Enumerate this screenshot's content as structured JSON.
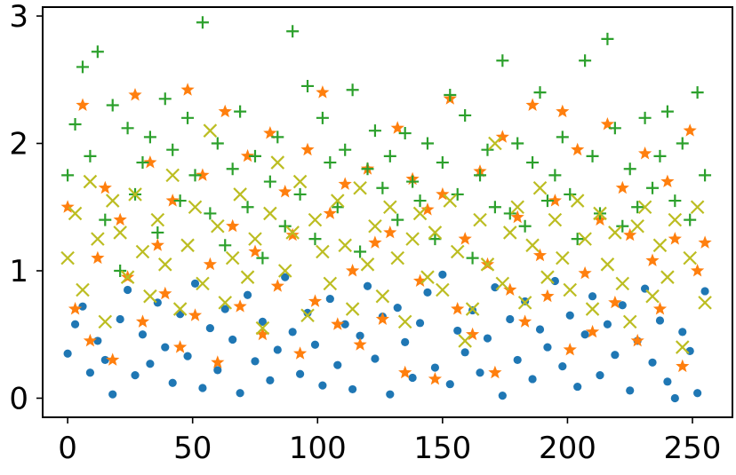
{
  "chart_data": {
    "type": "scatter",
    "title": "",
    "xlabel": "",
    "ylabel": "",
    "xlim": [
      -10,
      266
    ],
    "ylim": [
      -0.15,
      3.07
    ],
    "x_ticks": [
      0,
      50,
      100,
      150,
      200,
      250
    ],
    "y_ticks": [
      0,
      1,
      2,
      3
    ],
    "x_tick_labels": [
      "0",
      "50",
      "100",
      "150",
      "200",
      "250"
    ],
    "y_tick_labels": [
      "0",
      "1",
      "2",
      "3"
    ],
    "grid": false,
    "legend": "none",
    "series": [
      {
        "marker": "dot",
        "color": "#1f77b4",
        "x": [
          0,
          3,
          6,
          9,
          12,
          15,
          18,
          21,
          24,
          27,
          30,
          33,
          36,
          39,
          42,
          45,
          48,
          51,
          54,
          57,
          60,
          63,
          66,
          69,
          72,
          75,
          78,
          81,
          84,
          87,
          90,
          93,
          96,
          99,
          102,
          105,
          108,
          111,
          114,
          117,
          120,
          123,
          126,
          129,
          132,
          135,
          138,
          141,
          144,
          147,
          150,
          153,
          156,
          159,
          162,
          165,
          168,
          171,
          174,
          177,
          180,
          183,
          186,
          189,
          192,
          195,
          198,
          201,
          204,
          207,
          210,
          213,
          216,
          219,
          222,
          225,
          228,
          231,
          234,
          237,
          240,
          243,
          246,
          249,
          252,
          255
        ],
        "y": [
          0.35,
          0.58,
          0.72,
          0.2,
          0.45,
          0.3,
          0.03,
          0.62,
          0.85,
          0.18,
          0.5,
          0.27,
          0.75,
          0.4,
          0.12,
          0.66,
          0.33,
          0.9,
          0.08,
          0.55,
          0.22,
          0.7,
          0.46,
          0.04,
          0.81,
          0.29,
          0.6,
          0.14,
          0.38,
          0.95,
          0.52,
          0.19,
          0.67,
          0.42,
          0.1,
          0.78,
          0.26,
          0.58,
          0.07,
          0.49,
          0.88,
          0.31,
          0.64,
          0.03,
          0.71,
          0.44,
          0.16,
          0.59,
          0.83,
          0.24,
          0.97,
          0.11,
          0.53,
          0.36,
          0.69,
          0.2,
          0.47,
          0.87,
          0.02,
          0.62,
          0.3,
          0.76,
          0.15,
          0.54,
          0.4,
          0.92,
          0.25,
          0.65,
          0.09,
          0.5,
          0.8,
          0.18,
          0.58,
          0.34,
          0.73,
          0.06,
          0.45,
          0.86,
          0.28,
          0.61,
          0.13,
          0.0,
          0.52,
          0.37,
          0.04,
          0.84
        ]
      },
      {
        "marker": "star",
        "color": "#ff7f0e",
        "x": [
          0,
          3,
          6,
          9,
          12,
          15,
          18,
          21,
          24,
          27,
          30,
          33,
          36,
          39,
          42,
          45,
          48,
          51,
          54,
          57,
          60,
          63,
          66,
          69,
          72,
          75,
          78,
          81,
          84,
          87,
          90,
          93,
          96,
          99,
          102,
          105,
          108,
          111,
          114,
          117,
          120,
          123,
          126,
          129,
          132,
          135,
          138,
          141,
          144,
          147,
          150,
          153,
          156,
          159,
          162,
          165,
          168,
          171,
          174,
          177,
          180,
          183,
          186,
          189,
          192,
          195,
          198,
          201,
          204,
          207,
          210,
          213,
          216,
          219,
          222,
          225,
          228,
          231,
          234,
          237,
          240,
          243,
          246,
          249,
          252,
          255
        ],
        "y": [
          1.5,
          0.7,
          2.3,
          0.45,
          1.1,
          1.65,
          0.3,
          1.4,
          0.95,
          2.38,
          0.6,
          1.85,
          1.2,
          0.82,
          1.55,
          0.4,
          2.42,
          0.65,
          1.75,
          1.05,
          0.28,
          2.25,
          1.35,
          0.72,
          1.9,
          1.15,
          0.5,
          2.08,
          0.88,
          1.62,
          1.28,
          0.35,
          1.95,
          0.76,
          2.4,
          1.45,
          0.58,
          1.68,
          1.0,
          0.42,
          1.8,
          1.22,
          0.62,
          1.3,
          2.12,
          0.2,
          1.72,
          0.92,
          1.48,
          0.15,
          1.6,
          2.35,
          0.7,
          1.25,
          0.5,
          1.78,
          1.05,
          0.2,
          2.05,
          0.85,
          1.42,
          0.6,
          2.3,
          1.12,
          0.8,
          1.55,
          2.25,
          0.38,
          1.95,
          0.98,
          0.52,
          1.4,
          2.15,
          0.75,
          1.65,
          1.28,
          0.45,
          1.92,
          1.08,
          0.7,
          1.7,
          1.25,
          0.25,
          2.1,
          1.0,
          1.22
        ]
      },
      {
        "marker": "plus",
        "color": "#2ca02c",
        "x": [
          0,
          3,
          6,
          9,
          12,
          15,
          18,
          21,
          24,
          27,
          30,
          33,
          36,
          39,
          42,
          45,
          48,
          51,
          54,
          57,
          60,
          63,
          66,
          69,
          72,
          75,
          78,
          81,
          84,
          87,
          90,
          93,
          96,
          99,
          102,
          105,
          108,
          111,
          114,
          117,
          120,
          123,
          126,
          129,
          132,
          135,
          138,
          141,
          144,
          147,
          150,
          153,
          156,
          159,
          162,
          165,
          168,
          171,
          174,
          177,
          180,
          183,
          186,
          189,
          192,
          195,
          198,
          201,
          204,
          207,
          210,
          213,
          216,
          219,
          222,
          225,
          228,
          231,
          234,
          237,
          240,
          243,
          246,
          249,
          252,
          255
        ],
        "y": [
          1.75,
          2.15,
          2.6,
          1.9,
          2.72,
          1.4,
          2.3,
          1.0,
          2.12,
          1.6,
          1.85,
          2.05,
          1.3,
          2.35,
          1.95,
          1.55,
          2.2,
          1.75,
          2.95,
          1.45,
          2.0,
          1.2,
          1.8,
          2.25,
          1.5,
          1.9,
          1.1,
          1.7,
          2.05,
          1.35,
          2.88,
          1.6,
          2.45,
          1.25,
          2.2,
          1.85,
          1.5,
          1.95,
          2.42,
          1.15,
          1.8,
          2.1,
          1.65,
          1.9,
          1.4,
          2.08,
          1.7,
          1.55,
          2.0,
          1.25,
          1.85,
          2.38,
          1.6,
          2.22,
          1.1,
          1.75,
          1.95,
          1.5,
          2.65,
          1.45,
          2.0,
          1.35,
          1.85,
          2.4,
          1.55,
          1.75,
          2.05,
          1.6,
          1.25,
          2.65,
          1.9,
          1.45,
          2.82,
          2.12,
          1.35,
          1.8,
          1.5,
          2.2,
          1.65,
          1.9,
          2.25,
          1.55,
          2.0,
          1.4,
          2.4,
          1.75
        ]
      },
      {
        "marker": "x",
        "color": "#bcbd22",
        "x": [
          0,
          3,
          6,
          9,
          12,
          15,
          18,
          21,
          24,
          27,
          30,
          33,
          36,
          39,
          42,
          45,
          48,
          51,
          54,
          57,
          60,
          63,
          66,
          69,
          72,
          75,
          78,
          81,
          84,
          87,
          90,
          93,
          96,
          99,
          102,
          105,
          108,
          111,
          114,
          117,
          120,
          123,
          126,
          129,
          132,
          135,
          138,
          141,
          144,
          147,
          150,
          153,
          156,
          159,
          162,
          165,
          168,
          171,
          174,
          177,
          180,
          183,
          186,
          189,
          192,
          195,
          198,
          201,
          204,
          207,
          210,
          213,
          216,
          219,
          222,
          225,
          228,
          231,
          234,
          237,
          240,
          243,
          246,
          249,
          252,
          255
        ],
        "y": [
          1.1,
          1.45,
          0.85,
          1.7,
          1.25,
          0.6,
          1.55,
          1.3,
          0.95,
          1.6,
          1.15,
          0.8,
          1.4,
          1.05,
          1.75,
          0.7,
          1.2,
          1.5,
          0.9,
          2.1,
          1.35,
          0.75,
          1.1,
          1.6,
          0.95,
          1.25,
          0.55,
          1.45,
          1.85,
          1.0,
          1.3,
          1.7,
          0.65,
          1.4,
          1.15,
          0.9,
          1.55,
          1.2,
          0.7,
          1.65,
          1.05,
          1.35,
          0.8,
          1.5,
          1.1,
          0.6,
          1.25,
          1.45,
          0.95,
          1.3,
          0.85,
          1.55,
          1.15,
          0.45,
          0.7,
          1.4,
          1.05,
          2.0,
          0.9,
          1.3,
          1.5,
          0.75,
          1.2,
          1.65,
          0.95,
          1.4,
          1.1,
          0.85,
          1.55,
          1.25,
          0.7,
          1.45,
          1.05,
          1.3,
          0.9,
          0.6,
          1.35,
          1.5,
          0.8,
          1.2,
          0.95,
          1.4,
          0.4,
          1.1,
          1.5,
          0.75
        ]
      }
    ]
  }
}
